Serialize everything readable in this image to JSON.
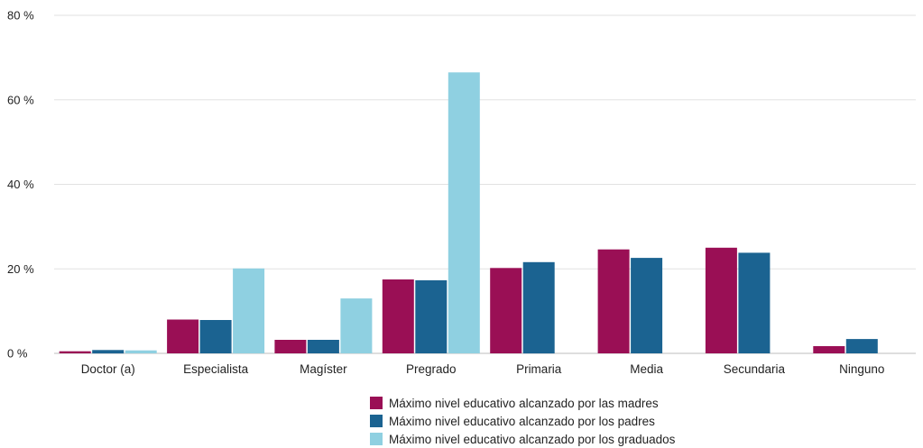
{
  "chart_data": {
    "type": "bar",
    "categories": [
      "Doctor (a)",
      "Especialista",
      "Magíster",
      "Pregrado",
      "Primaria",
      "Media",
      "Secundaria",
      "Ninguno"
    ],
    "series": [
      {
        "name": "Máximo nivel educativo alcanzado por las madres",
        "color": "#9a0f55",
        "values": [
          0.5,
          8.0,
          3.2,
          17.5,
          20.2,
          24.6,
          25.0,
          1.7
        ]
      },
      {
        "name": "Máximo nivel educativo alcanzado por los padres",
        "color": "#1b6391",
        "values": [
          0.8,
          7.9,
          3.2,
          17.3,
          21.6,
          22.6,
          23.8,
          3.4
        ]
      },
      {
        "name": "Máximo nivel educativo alcanzado por los graduados",
        "color": "#8fd0e1",
        "values": [
          0.7,
          20.1,
          13.0,
          66.5,
          null,
          null,
          null,
          null
        ]
      }
    ],
    "yticks": [
      "0 %",
      "20 %",
      "40 %",
      "60 %",
      "80 %"
    ],
    "ytick_values": [
      0,
      20,
      40,
      60,
      80
    ],
    "ylim": [
      0,
      80
    ],
    "grid": true,
    "legend_position": "bottom"
  }
}
